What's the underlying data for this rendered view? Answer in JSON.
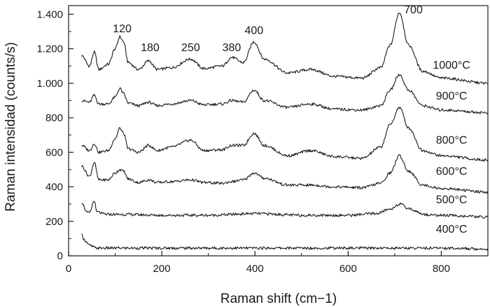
{
  "chart_data": {
    "type": "line",
    "xlabel": "Raman shift (cm−1)",
    "ylabel": "Raman intensidad (counts/s)",
    "xlim": [
      0,
      900
    ],
    "ylim": [
      0,
      1450
    ],
    "xticks": [
      0,
      200,
      400,
      600,
      800
    ],
    "xtick_labels": [
      "0",
      "200",
      "400",
      "600",
      "800"
    ],
    "yticks": [
      0,
      200,
      400,
      600,
      800,
      1000,
      1200,
      1400
    ],
    "ytick_labels": [
      "0",
      "200",
      "400",
      "600",
      "800",
      "1.000",
      "1.200",
      "1.400"
    ],
    "grid": false,
    "legend": "none",
    "peak_labels": [
      {
        "text": "120",
        "x": 115,
        "y": 1295
      },
      {
        "text": "180",
        "x": 175,
        "y": 1185
      },
      {
        "text": "250",
        "x": 262,
        "y": 1185
      },
      {
        "text": "380",
        "x": 350,
        "y": 1185
      },
      {
        "text": "400",
        "x": 398,
        "y": 1285
      },
      {
        "text": "700",
        "x": 740,
        "y": 1405
      }
    ],
    "series": [
      {
        "name": "1000°C",
        "label_x": 822,
        "label_y": 1085,
        "x": [
          28,
          45,
          55,
          65,
          85,
          100,
          110,
          118,
          128,
          150,
          172,
          190,
          220,
          262,
          290,
          330,
          350,
          375,
          398,
          420,
          470,
          520,
          570,
          630,
          670,
          690,
          710,
          730,
          760,
          800,
          900
        ],
        "y": [
          1160,
          1100,
          1180,
          1080,
          1110,
          1200,
          1270,
          1240,
          1120,
          1080,
          1130,
          1080,
          1090,
          1140,
          1085,
          1100,
          1150,
          1120,
          1240,
          1140,
          1060,
          1080,
          1040,
          1030,
          1090,
          1220,
          1410,
          1220,
          1070,
          1030,
          1000
        ]
      },
      {
        "name": "900°C",
        "label_x": 822,
        "label_y": 905,
        "x": [
          28,
          45,
          55,
          65,
          85,
          100,
          110,
          118,
          128,
          150,
          172,
          190,
          220,
          262,
          290,
          330,
          350,
          375,
          398,
          420,
          470,
          520,
          570,
          630,
          670,
          690,
          710,
          730,
          760,
          800,
          900
        ],
        "y": [
          900,
          890,
          930,
          880,
          880,
          920,
          970,
          940,
          885,
          870,
          890,
          870,
          880,
          900,
          875,
          880,
          900,
          890,
          960,
          900,
          860,
          880,
          850,
          845,
          870,
          960,
          1050,
          960,
          870,
          845,
          830
        ]
      },
      {
        "name": "800°C",
        "label_x": 822,
        "label_y": 650,
        "x": [
          28,
          45,
          55,
          65,
          85,
          100,
          110,
          118,
          128,
          150,
          172,
          190,
          220,
          262,
          290,
          330,
          350,
          375,
          398,
          420,
          470,
          520,
          570,
          630,
          670,
          690,
          710,
          730,
          760,
          800,
          900
        ],
        "y": [
          640,
          610,
          650,
          600,
          610,
          680,
          740,
          710,
          620,
          600,
          640,
          610,
          630,
          670,
          610,
          615,
          640,
          640,
          710,
          640,
          580,
          610,
          575,
          565,
          630,
          760,
          860,
          740,
          610,
          580,
          555
        ]
      },
      {
        "name": "600°C",
        "label_x": 822,
        "label_y": 470,
        "x": [
          28,
          45,
          55,
          65,
          85,
          100,
          110,
          118,
          128,
          150,
          172,
          190,
          220,
          262,
          290,
          330,
          350,
          375,
          398,
          420,
          470,
          520,
          570,
          630,
          670,
          690,
          710,
          730,
          760,
          800,
          900
        ],
        "y": [
          520,
          460,
          540,
          440,
          440,
          480,
          500,
          490,
          445,
          425,
          440,
          425,
          430,
          440,
          425,
          420,
          430,
          440,
          480,
          450,
          410,
          410,
          400,
          395,
          420,
          480,
          580,
          490,
          410,
          390,
          370
        ]
      },
      {
        "name": "500°C",
        "label_x": 822,
        "label_y": 305,
        "x": [
          28,
          40,
          45,
          55,
          60,
          80,
          120,
          200,
          300,
          400,
          500,
          600,
          660,
          690,
          710,
          730,
          745,
          760,
          800,
          900
        ],
        "y": [
          310,
          250,
          250,
          320,
          255,
          240,
          240,
          235,
          235,
          245,
          235,
          235,
          245,
          270,
          300,
          275,
          260,
          240,
          235,
          225
        ]
      },
      {
        "name": "400°C",
        "label_x": 822,
        "label_y": 135,
        "x": [
          28,
          35,
          45,
          60,
          100,
          200,
          300,
          400,
          500,
          600,
          700,
          800,
          900
        ],
        "y": [
          120,
          90,
          60,
          45,
          45,
          45,
          45,
          45,
          45,
          45,
          45,
          45,
          40
        ]
      }
    ]
  }
}
